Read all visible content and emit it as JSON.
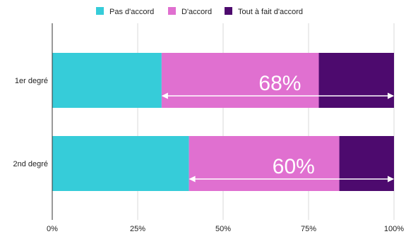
{
  "chart_data": {
    "type": "bar",
    "orientation": "horizontal",
    "stacked": true,
    "percent": true,
    "categories": [
      "1er degré",
      "2nd degré"
    ],
    "series": [
      {
        "name": "Pas d'accord",
        "color": "#36CCD9",
        "values": [
          32,
          40
        ]
      },
      {
        "name": "D'accord",
        "color": "#E070D0",
        "values": [
          46,
          44
        ]
      },
      {
        "name": "Tout à fait d'accord",
        "color": "#4D0A6E",
        "values": [
          22,
          16
        ]
      }
    ],
    "xlim": [
      0,
      100
    ],
    "xticks": [
      0,
      25,
      50,
      75,
      100
    ],
    "xtick_labels": [
      "0%",
      "25%",
      "50%",
      "75%",
      "100%"
    ],
    "grid": "vertical",
    "legend": "top-center",
    "annotations": [
      {
        "category": "1er degré",
        "label": "68%",
        "from": 32,
        "to": 100
      },
      {
        "category": "2nd degré",
        "label": "60%",
        "from": 40,
        "to": 100
      }
    ]
  }
}
